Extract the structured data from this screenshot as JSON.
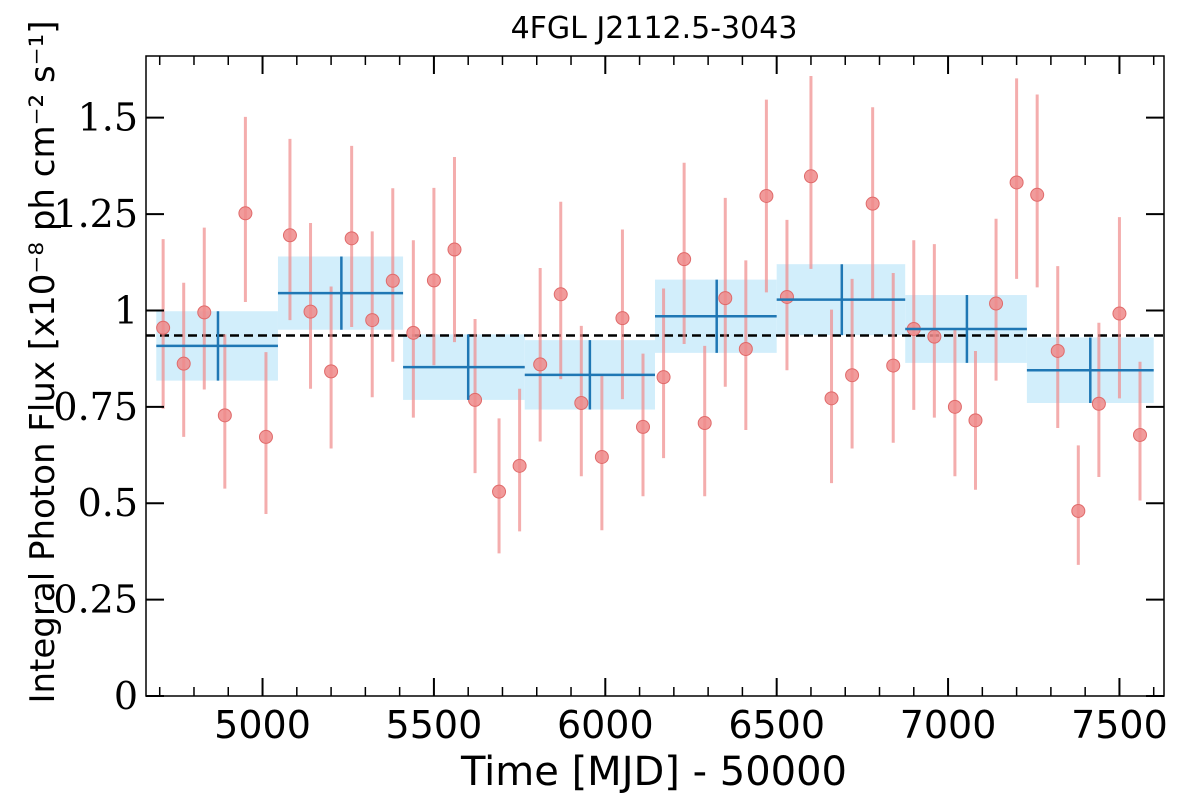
{
  "chart_data": {
    "type": "scatter",
    "title": "4FGL J2112.5-3043",
    "xlabel": "Time [MJD] - 50000",
    "ylabel": "Integral Photon Flux [x10⁻⁸ ph cm⁻² s⁻¹]",
    "xlim": [
      4660,
      7630
    ],
    "ylim": [
      0,
      1.66
    ],
    "xticks": [
      5000,
      5500,
      6000,
      6500,
      7000,
      7500
    ],
    "xtick_labels": [
      "5000",
      "5500",
      "6000",
      "6500",
      "7000",
      "7500"
    ],
    "yticks": [
      0,
      0.25,
      0.5,
      0.75,
      1,
      1.25,
      1.5
    ],
    "ytick_labels": [
      "0",
      "0.25",
      "0.5",
      "0.75",
      "1",
      "1.25",
      "1.5"
    ],
    "mean_flux": 0.935,
    "grid": false,
    "legend": "none",
    "colors": {
      "short_bins": "#ef8a8a",
      "long_bins": "#1f77b4",
      "long_bins_band": "#d2eefb",
      "mean_line": "#000000"
    },
    "series": [
      {
        "kind": "points_with_errorbars",
        "x": [
          4710,
          4770,
          4830,
          4890,
          4950,
          5010,
          5080,
          5140,
          5200,
          5260,
          5320,
          5380,
          5440,
          5500,
          5560,
          5620,
          5690,
          5750,
          5810,
          5870,
          5930,
          5990,
          6050,
          6110,
          6170,
          6230,
          6290,
          6350,
          6410,
          6470,
          6530,
          6600,
          6660,
          6720,
          6780,
          6840,
          6900,
          6960,
          7020,
          7080,
          7140,
          7200,
          7260,
          7320,
          7380,
          7440,
          7500,
          7560
        ],
        "y": [
          0.955,
          0.862,
          0.995,
          0.728,
          1.252,
          0.672,
          1.195,
          0.997,
          0.842,
          1.187,
          0.975,
          1.077,
          0.942,
          1.078,
          1.158,
          0.768,
          0.53,
          0.597,
          0.86,
          1.042,
          0.76,
          0.62,
          0.98,
          0.698,
          0.827,
          1.133,
          0.708,
          1.032,
          0.9,
          1.297,
          1.035,
          1.348,
          0.772,
          0.832,
          1.277,
          0.857,
          0.952,
          0.932,
          0.75,
          0.715,
          1.018,
          1.332,
          1.3,
          0.895,
          0.48,
          0.758,
          0.992,
          0.677
        ],
        "yerr_low": [
          0.21,
          0.19,
          0.2,
          0.19,
          0.23,
          0.2,
          0.22,
          0.2,
          0.2,
          0.23,
          0.2,
          0.21,
          0.22,
          0.22,
          0.24,
          0.19,
          0.16,
          0.17,
          0.2,
          0.22,
          0.19,
          0.19,
          0.21,
          0.18,
          0.21,
          0.22,
          0.19,
          0.23,
          0.21,
          0.25,
          0.19,
          0.24,
          0.22,
          0.19,
          0.25,
          0.2,
          0.21,
          0.21,
          0.18,
          0.18,
          0.2,
          0.25,
          0.24,
          0.2,
          0.14,
          0.19,
          0.22,
          0.17
        ],
        "yerr_high": [
          0.23,
          0.21,
          0.22,
          0.21,
          0.25,
          0.22,
          0.25,
          0.23,
          0.22,
          0.24,
          0.23,
          0.24,
          0.24,
          0.24,
          0.24,
          0.21,
          0.19,
          0.2,
          0.25,
          0.24,
          0.2,
          0.21,
          0.23,
          0.19,
          0.23,
          0.25,
          0.2,
          0.26,
          0.23,
          0.25,
          0.2,
          0.26,
          0.23,
          0.25,
          0.25,
          0.24,
          0.23,
          0.24,
          0.2,
          0.18,
          0.22,
          0.27,
          0.26,
          0.22,
          0.17,
          0.21,
          0.25,
          0.19
        ]
      },
      {
        "kind": "binned_with_errorbars",
        "x_start": [
          4690,
          5045,
          5410,
          5765,
          6145,
          6500,
          6875,
          7230
        ],
        "x_end": [
          5045,
          5410,
          5765,
          6145,
          6500,
          6875,
          7230,
          7600
        ],
        "x_center": [
          4870,
          5230,
          5600,
          5955,
          6325,
          6690,
          7055,
          7415
        ],
        "y": [
          0.908,
          1.045,
          0.853,
          0.833,
          0.985,
          1.028,
          0.952,
          0.845
        ],
        "yerr": [
          0.09,
          0.095,
          0.085,
          0.09,
          0.095,
          0.092,
          0.088,
          0.085
        ]
      }
    ]
  }
}
